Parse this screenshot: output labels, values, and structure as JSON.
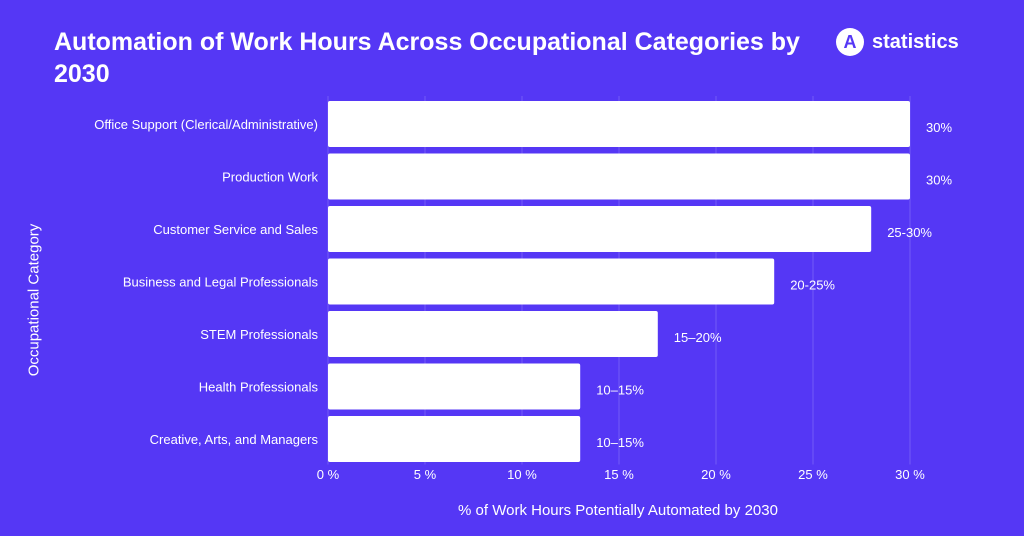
{
  "header": {
    "title": "Automation of Work Hours Across Occupational Categories by 2030",
    "brand_icon": "A",
    "brand_name": "statistics"
  },
  "colors": {
    "background": "#5537f5",
    "bar": "#ffffff",
    "text": "#ffffff"
  },
  "chart_data": {
    "type": "bar",
    "orientation": "horizontal",
    "title": "Automation of Work Hours Across Occupational Categories by 2030",
    "xlabel": "% of Work Hours Potentially Automated by 2030",
    "ylabel": "Occupational Category",
    "xlim": [
      0,
      30
    ],
    "xticks": [
      0,
      5,
      10,
      15,
      20,
      25,
      30
    ],
    "xtick_labels": [
      "0 %",
      "5 %",
      "10 %",
      "15 %",
      "20 %",
      "25 %",
      "30 %"
    ],
    "categories": [
      "Office Support (Clerical/Administrative)",
      "Production Work",
      "Customer Service and Sales",
      "Business and Legal Professionals",
      "STEM Professionals",
      "Health Professionals",
      "Creative, Arts, and Managers"
    ],
    "values": [
      30,
      30,
      28,
      23,
      17,
      13,
      13
    ],
    "data_labels": [
      "30%",
      "30%",
      "25-30%",
      "20-25%",
      "15–20%",
      "10–15%",
      "10–15%"
    ],
    "grid": true,
    "legend": "none"
  }
}
